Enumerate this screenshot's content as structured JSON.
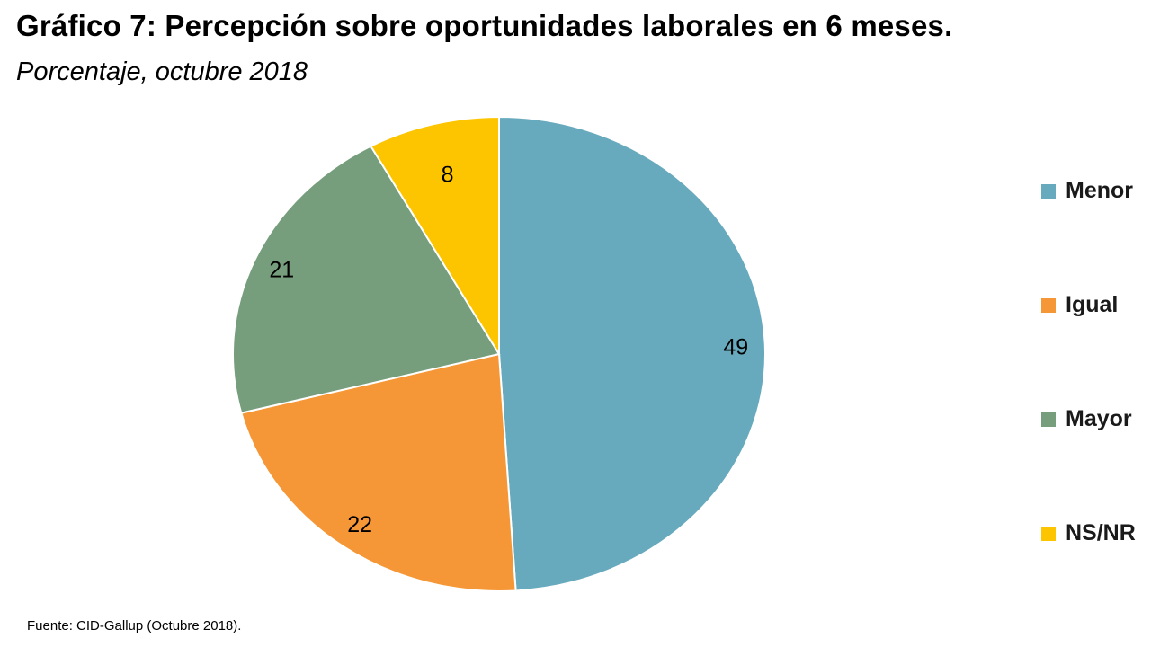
{
  "header": {
    "title": "Gráfico 7: Percepción sobre oportunidades laborales en 6 meses.",
    "subtitle": "Porcentaje, octubre 2018"
  },
  "footer": {
    "source": "Fuente: CID-Gallup (Octubre 2018)."
  },
  "chart_data": {
    "type": "pie",
    "title": "Gráfico 7: Percepción sobre oportunidades laborales en 6 meses.",
    "subtitle": "Porcentaje, octubre 2018",
    "categories": [
      "Menor",
      "Igual",
      "Mayor",
      "NS/NR"
    ],
    "values": [
      49,
      22,
      21,
      8
    ],
    "labels": [
      "49",
      "22",
      "21",
      "8"
    ],
    "colors": [
      "#67a9bd",
      "#f59736",
      "#769e7d",
      "#fdc500"
    ],
    "legend_position": "right",
    "start": "top",
    "direction": "clockwise"
  }
}
